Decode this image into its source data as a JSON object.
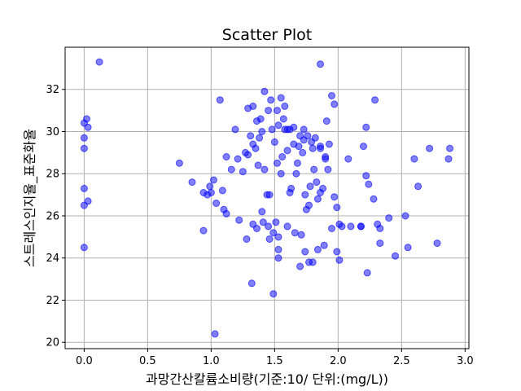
{
  "chart_data": {
    "type": "scatter",
    "title": "Scatter Plot",
    "xlabel": "과망간산칼륨소비량(기준:10/ 단위:(mg/L))",
    "ylabel": "스트레스인지율_표준화율",
    "xlim": [
      -0.15,
      3.03
    ],
    "ylim": [
      19.7,
      34.0
    ],
    "xticks": [
      0.0,
      0.5,
      1.0,
      1.5,
      2.0,
      2.5,
      3.0
    ],
    "xtick_labels": [
      "0.0",
      "0.5",
      "1.0",
      "1.5",
      "2.0",
      "2.5",
      "3.0"
    ],
    "yticks": [
      20,
      22,
      24,
      26,
      28,
      30,
      32
    ],
    "ytick_labels": [
      "20",
      "22",
      "24",
      "26",
      "28",
      "30",
      "32"
    ],
    "grid": true,
    "point_color": "#0000ff",
    "x": [
      0.12,
      0.0,
      0.02,
      0.03,
      0.0,
      0.0,
      0.0,
      0.03,
      0.0,
      0.0,
      1.07,
      1.29,
      1.33,
      1.39,
      1.45,
      1.47,
      1.42,
      1.55,
      1.52,
      1.58,
      1.62,
      1.57,
      1.6,
      1.65,
      1.69,
      1.76,
      1.79,
      1.82,
      1.73,
      1.73,
      1.86,
      1.86,
      1.86,
      1.9,
      1.91,
      1.95,
      1.97,
      2.22,
      2.2,
      2.29,
      2.08,
      0.75,
      0.85,
      0.94,
      0.97,
      0.99,
      1.02,
      1.09,
      1.12,
      1.16,
      1.19,
      1.21,
      1.25,
      1.27,
      1.29,
      1.31,
      1.33,
      1.35,
      1.36,
      1.37,
      1.38,
      1.4,
      1.42,
      1.44,
      1.46,
      1.48,
      1.5,
      1.52,
      1.53,
      1.55,
      1.56,
      1.58,
      1.6,
      1.62,
      1.63,
      1.65,
      1.67,
      1.68,
      1.7,
      1.72,
      1.74,
      1.75,
      1.77,
      1.78,
      1.8,
      1.81,
      1.83,
      1.84,
      1.86,
      1.88,
      1.9,
      1.92,
      1.93,
      1.95,
      1.97,
      1.99,
      2.01,
      2.03,
      2.1,
      2.18,
      2.22,
      2.24,
      2.28,
      2.31,
      2.33,
      2.4,
      2.45,
      2.53,
      2.55,
      2.6,
      2.63,
      2.72,
      2.78,
      2.88,
      2.87,
      1.0,
      0.94,
      1.04,
      1.12,
      1.22,
      1.28,
      1.33,
      1.36,
      1.41,
      1.45,
      1.49,
      1.53,
      1.53,
      1.6,
      1.66,
      1.71,
      1.74,
      1.77,
      1.84,
      1.89,
      1.99,
      2.01,
      2.33,
      2.18,
      1.32,
      1.49,
      1.53,
      1.4,
      1.46,
      1.51,
      1.7,
      1.8,
      1.03,
      1.1,
      2.23
    ],
    "y": [
      33.3,
      30.4,
      30.6,
      30.2,
      29.7,
      29.2,
      27.3,
      26.7,
      26.5,
      24.5,
      31.5,
      31.1,
      31.2,
      30.6,
      31.0,
      31.5,
      31.9,
      31.6,
      31.0,
      31.2,
      30.1,
      30.6,
      30.1,
      30.2,
      29.3,
      29.8,
      29.5,
      29.7,
      30.1,
      29.6,
      29.3,
      29.2,
      33.2,
      28.8,
      30.5,
      31.7,
      31.3,
      30.2,
      29.3,
      31.5,
      28.7,
      28.5,
      27.6,
      27.1,
      27.0,
      27.4,
      27.7,
      27.2,
      28.8,
      28.2,
      30.1,
      28.7,
      28.1,
      29.0,
      28.9,
      29.8,
      29.4,
      29.2,
      30.5,
      28.4,
      29.7,
      30.0,
      28.2,
      27.0,
      27.0,
      30.1,
      29.5,
      28.5,
      30.3,
      28.0,
      28.8,
      30.1,
      29.1,
      27.1,
      27.3,
      29.4,
      28.0,
      28.5,
      29.8,
      29.0,
      27.0,
      26.3,
      26.5,
      27.4,
      29.2,
      28.2,
      27.6,
      26.8,
      27.1,
      27.3,
      28.7,
      28.2,
      29.4,
      25.4,
      26.9,
      26.4,
      25.6,
      25.5,
      25.5,
      25.5,
      27.9,
      27.5,
      26.8,
      25.6,
      25.4,
      25.9,
      24.1,
      26.0,
      24.5,
      28.7,
      27.4,
      29.2,
      24.7,
      29.2,
      28.7,
      27.1,
      25.3,
      26.6,
      26.1,
      25.8,
      24.9,
      25.6,
      25.4,
      25.7,
      25.5,
      25.2,
      25.0,
      24.4,
      25.5,
      25.2,
      25.1,
      24.3,
      23.8,
      24.4,
      24.6,
      24.3,
      23.9,
      24.7,
      25.5,
      22.8,
      22.3,
      24.0,
      26.2,
      24.9,
      25.7,
      23.6,
      23.8,
      20.4,
      26.3,
      23.3
    ]
  }
}
